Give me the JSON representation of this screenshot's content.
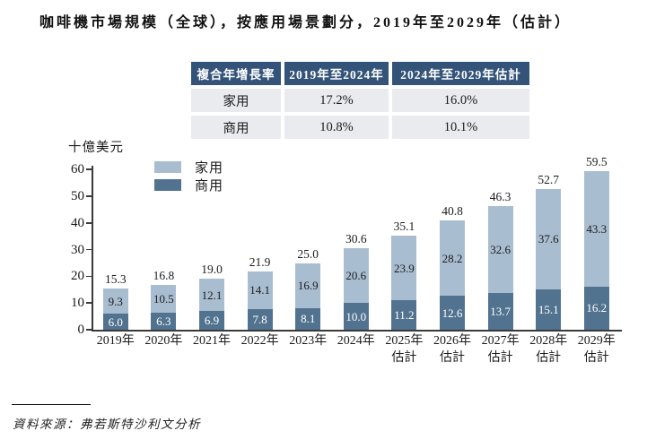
{
  "title": "咖啡機市場規模（全球），按應用場景劃分，2019年至2029年（估計）",
  "cagr_table": {
    "headers": [
      "複合年增長率",
      "2019年至2024年",
      "2024年至2029年估計"
    ],
    "rows": [
      [
        "家用",
        "17.2%",
        "16.0%"
      ],
      [
        "商用",
        "10.8%",
        "10.1%"
      ]
    ]
  },
  "chart": {
    "unit_label": "十億美元",
    "legend": [
      "家用",
      "商用"
    ]
  },
  "chart_data": {
    "type": "bar",
    "stacked": true,
    "title": "咖啡機市場規模（全球），按應用場景劃分，2019年至2029年（估計）",
    "ylabel": "十億美元",
    "ylim": [
      0,
      60
    ],
    "yticks": [
      0,
      10,
      20,
      30,
      40,
      50,
      60
    ],
    "grid": false,
    "legend_position": "top-left-inside",
    "categories": [
      "2019年",
      "2020年",
      "2021年",
      "2022年",
      "2023年",
      "2024年",
      "2025年",
      "2026年",
      "2027年",
      "2028年",
      "2029年"
    ],
    "estimate_note": "估計",
    "estimate_start_index": 6,
    "series": [
      {
        "name": "商用",
        "values": [
          6.0,
          6.3,
          6.9,
          7.8,
          8.1,
          10.0,
          11.2,
          12.6,
          13.7,
          15.1,
          16.2
        ]
      },
      {
        "name": "家用",
        "values": [
          9.3,
          10.5,
          12.1,
          14.1,
          16.9,
          20.6,
          23.9,
          28.2,
          32.6,
          37.6,
          43.3
        ]
      }
    ],
    "totals": [
      15.3,
      16.8,
      19.0,
      21.9,
      25.0,
      30.6,
      35.1,
      40.8,
      46.3,
      52.7,
      59.5
    ]
  },
  "source": "資料來源：弗若斯特沙利文分析",
  "colors": {
    "home": "#a9bdd0",
    "commercial": "#527390",
    "table_header_bg": "#335379",
    "table_header_text": "#ffffff",
    "table_row_bg": "#e9ebef",
    "number_text": "#1b1b1b",
    "white_label": "#ffffff",
    "axis": "#3a3a3a"
  }
}
